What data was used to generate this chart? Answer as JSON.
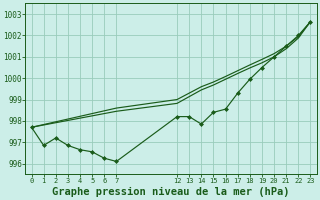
{
  "background_color": "#cceee8",
  "grid_color": "#99ccbb",
  "line_color": "#1a5c1a",
  "title": "Graphe pression niveau de la mer (hPa)",
  "title_fontsize": 7.5,
  "title_color": "#1a5c1a",
  "ylim": [
    995.5,
    1003.5
  ],
  "yticks": [
    996,
    997,
    998,
    999,
    1000,
    1001,
    1002,
    1003
  ],
  "xlim": [
    -0.5,
    23.5
  ],
  "xtick_positions": [
    0,
    1,
    2,
    3,
    4,
    5,
    6,
    7,
    12,
    13,
    14,
    15,
    16,
    17,
    18,
    19,
    20,
    21,
    22,
    23
  ],
  "xtick_labels": [
    "0",
    "1",
    "2",
    "3",
    "4",
    "5",
    "6",
    "7",
    "12",
    "13",
    "14",
    "15",
    "16",
    "17",
    "18",
    "19",
    "20",
    "21",
    "22",
    "23"
  ],
  "line1_x": [
    0,
    1,
    2,
    3,
    4,
    5,
    6,
    7,
    12,
    13,
    14,
    15,
    16,
    17,
    18,
    19,
    20,
    21,
    22,
    23
  ],
  "line1_y": [
    997.7,
    996.85,
    997.2,
    996.85,
    996.65,
    996.55,
    996.25,
    996.1,
    998.2,
    998.2,
    997.85,
    998.4,
    998.55,
    999.3,
    999.95,
    1000.5,
    1001.0,
    1001.5,
    1002.0,
    1002.65
  ],
  "line2_x": [
    0,
    7,
    12,
    14,
    15,
    16,
    17,
    18,
    19,
    20,
    21,
    22,
    23
  ],
  "line2_y": [
    997.7,
    998.6,
    999.0,
    999.6,
    999.82,
    1000.08,
    1000.35,
    1000.62,
    1000.88,
    1001.15,
    1001.5,
    1001.95,
    1002.65
  ],
  "line3_x": [
    0,
    7,
    12,
    14,
    15,
    16,
    17,
    18,
    19,
    20,
    21,
    22,
    23
  ],
  "line3_y": [
    997.7,
    998.45,
    998.82,
    999.45,
    999.68,
    999.95,
    1000.22,
    1000.48,
    1000.72,
    1001.0,
    1001.38,
    1001.88,
    1002.65
  ]
}
